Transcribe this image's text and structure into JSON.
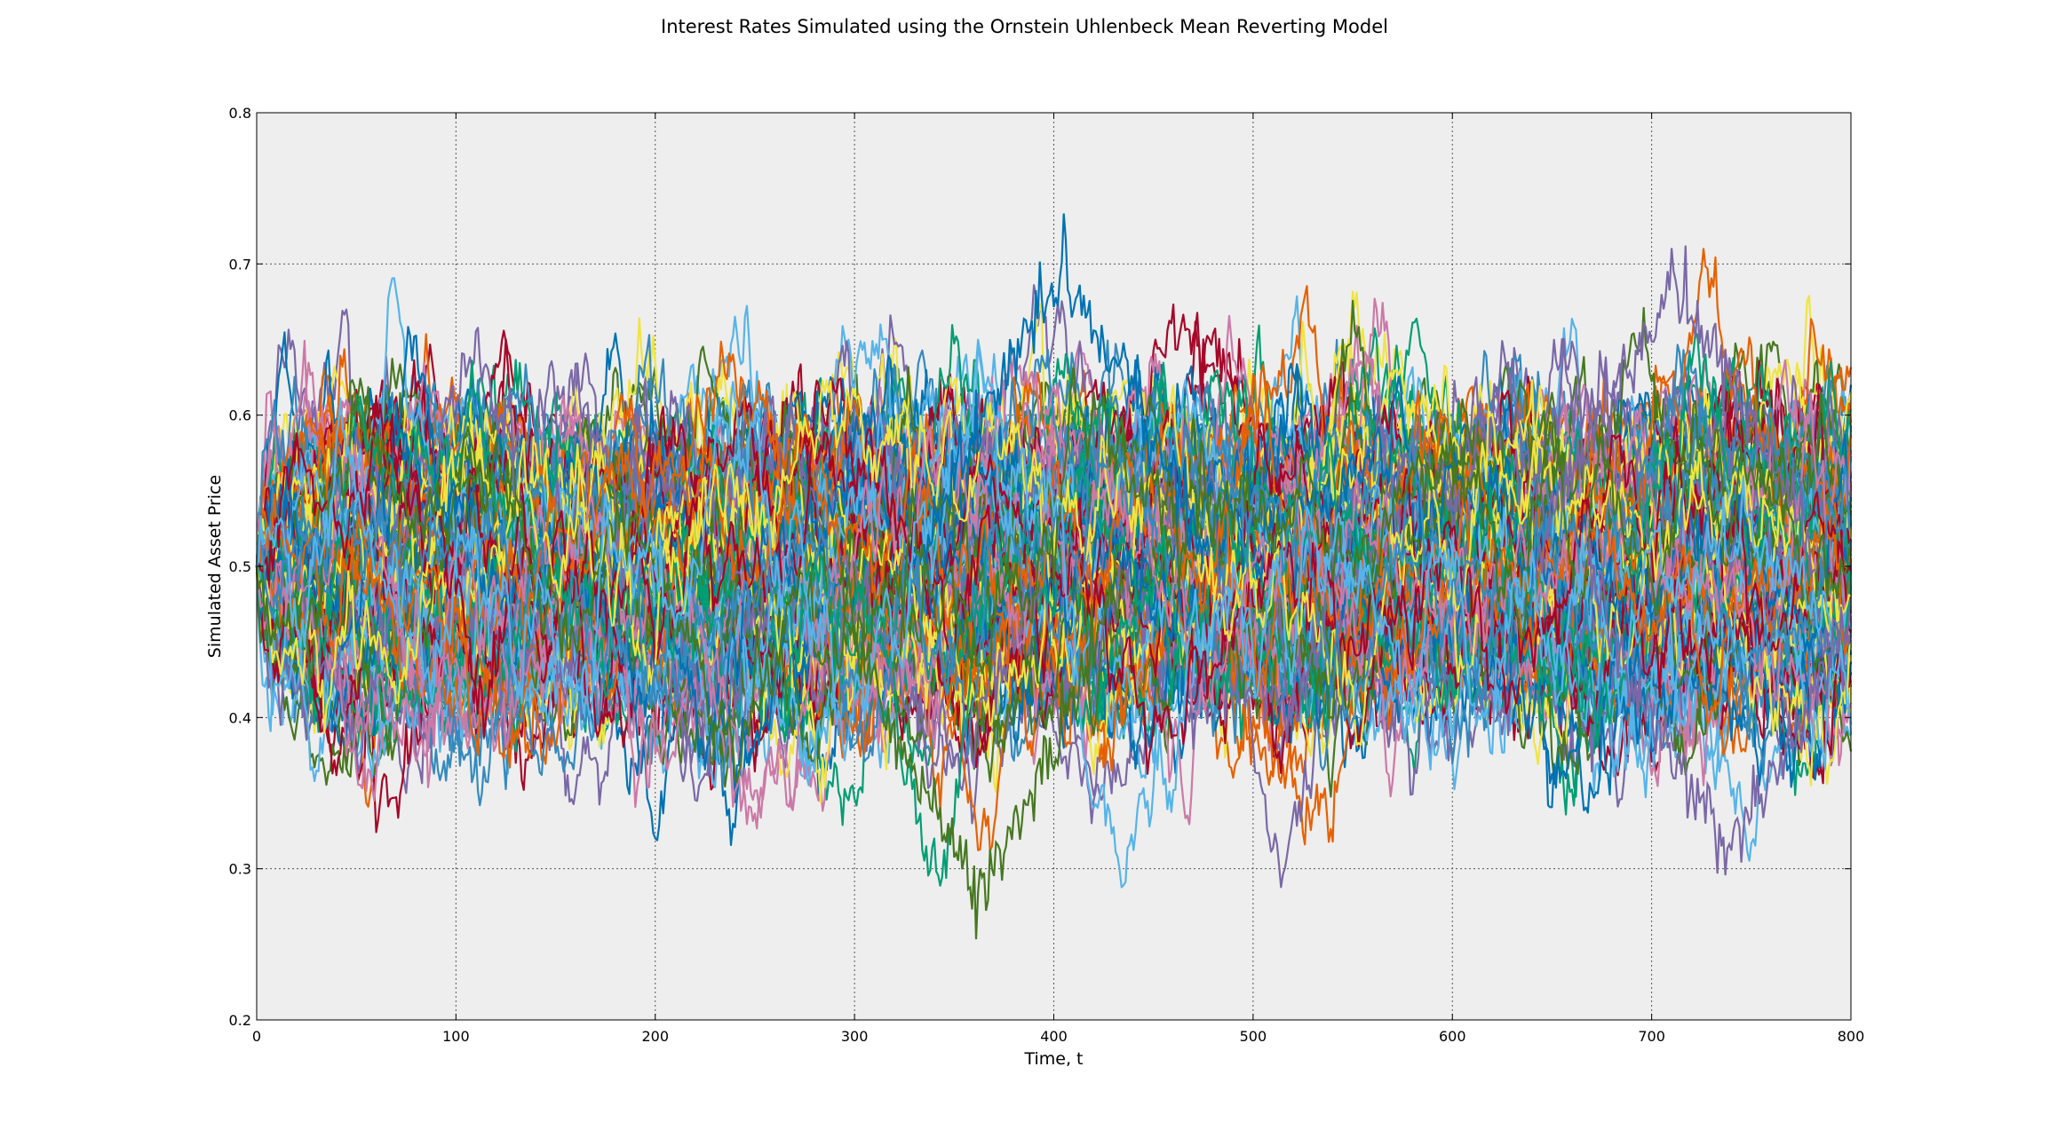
{
  "chart_data": {
    "type": "line",
    "title": "Interest Rates Simulated using the Ornstein Uhlenbeck Mean Reverting Model",
    "xlabel": "Time, t",
    "ylabel": "Simulated Asset Price",
    "xlim": [
      0,
      800
    ],
    "ylim": [
      0.2,
      0.8
    ],
    "x_ticks": [
      0,
      100,
      200,
      300,
      400,
      500,
      600,
      700,
      800
    ],
    "y_ticks": [
      0.2,
      0.3,
      0.4,
      0.5,
      0.6,
      0.7,
      0.8
    ],
    "grid": true,
    "legend": "none",
    "background_color": "#eeeeee",
    "series_colors": [
      "#7a68a6",
      "#0072b2",
      "#009e73",
      "#e66101",
      "#cc79a7",
      "#a60628",
      "#f0e442",
      "#348abd",
      "#467821",
      "#56b4e9"
    ],
    "model": {
      "start_value": 0.5,
      "mean_level": 0.5,
      "n_paths": 200,
      "n_steps": 800
    },
    "highlighted_extremes": [
      {
        "description": "low excursion",
        "x": 362,
        "y": 0.255
      },
      {
        "description": "high excursion",
        "x": 405,
        "y": 0.718
      },
      {
        "description": "high excursion",
        "x": 712,
        "y": 0.706
      },
      {
        "description": "low excursion",
        "x": 738,
        "y": 0.293
      }
    ]
  }
}
